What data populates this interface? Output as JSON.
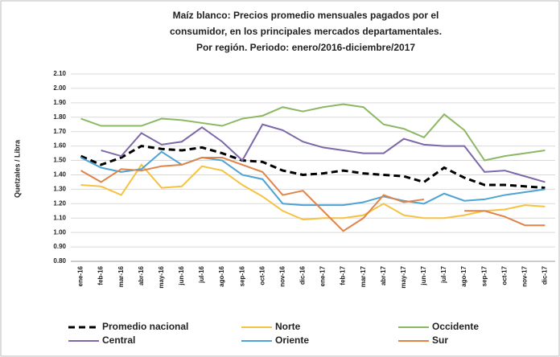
{
  "chart_data": {
    "type": "line",
    "title": [
      "Maíz blanco: Precios promedio mensuales pagados por el",
      "consumidor,  en los principales mercados departamentales.",
      "Por región. Periodo: enero/2016-diciembre/2017"
    ],
    "y_label": "Quetzales / Libra",
    "categories": [
      "ene-16",
      "feb-16",
      "mar-16",
      "abr-16",
      "may-16",
      "jun-16",
      "jul-16",
      "ago-16",
      "sep-16",
      "oct-16",
      "nov-16",
      "dic-16",
      "ene-17",
      "feb-17",
      "mar-17",
      "abr-17",
      "may-17",
      "jun-17",
      "jul-17",
      "ago-17",
      "sep-17",
      "oct-17",
      "nov-17",
      "dic-17"
    ],
    "ylim": [
      0.8,
      2.1
    ],
    "yticks": [
      {
        "value": 0.8,
        "label": "0.80"
      },
      {
        "value": 0.9,
        "label": "0.90"
      },
      {
        "value": 1.0,
        "label": "1.00"
      },
      {
        "value": 1.1,
        "label": "1.10"
      },
      {
        "value": 1.2,
        "label": "1.20"
      },
      {
        "value": 1.3,
        "label": "1.30"
      },
      {
        "value": 1.4,
        "label": "1.40"
      },
      {
        "value": 1.5,
        "label": "1.50"
      },
      {
        "value": 1.6,
        "label": "1.60"
      },
      {
        "value": 1.7,
        "label": "1.70"
      },
      {
        "value": 1.8,
        "label": "1.80"
      },
      {
        "value": 1.9,
        "label": "1.90"
      },
      {
        "value": 2.0,
        "label": "2.00"
      },
      {
        "value": 2.1,
        "label": "2.10"
      }
    ],
    "grid": true,
    "series": [
      {
        "name": "Promedio nacional",
        "color": "#000000",
        "dashed": true,
        "values": [
          1.53,
          1.47,
          1.52,
          1.6,
          1.58,
          1.57,
          1.59,
          1.55,
          1.5,
          1.49,
          1.43,
          1.4,
          1.41,
          1.43,
          1.41,
          1.4,
          1.39,
          1.35,
          1.45,
          1.38,
          1.33,
          1.33,
          1.32,
          1.31
        ]
      },
      {
        "name": "Norte",
        "color": "#f5c242",
        "values": [
          1.33,
          1.32,
          1.26,
          1.47,
          1.31,
          1.32,
          1.46,
          1.43,
          1.33,
          1.25,
          1.15,
          1.09,
          1.1,
          1.1,
          1.12,
          1.2,
          1.12,
          1.1,
          1.1,
          1.12,
          1.15,
          1.16,
          1.19,
          1.18
        ]
      },
      {
        "name": "Occidente",
        "color": "#8db863",
        "values": [
          1.79,
          1.74,
          1.74,
          1.74,
          1.79,
          1.78,
          1.76,
          1.74,
          1.79,
          1.81,
          1.87,
          1.84,
          1.87,
          1.89,
          1.87,
          1.75,
          1.72,
          1.66,
          1.82,
          1.71,
          1.5,
          1.53,
          1.55,
          1.57
        ]
      },
      {
        "name": "Central",
        "color": "#7d68a8",
        "values": [
          null,
          1.57,
          1.53,
          1.69,
          1.61,
          1.63,
          1.73,
          1.63,
          1.5,
          1.75,
          1.71,
          1.63,
          1.59,
          1.57,
          1.55,
          1.55,
          1.65,
          1.61,
          1.6,
          1.6,
          1.42,
          1.43,
          1.39,
          1.35
        ]
      },
      {
        "name": "Oriente",
        "color": "#4ea3d4",
        "values": [
          1.52,
          1.45,
          1.42,
          1.44,
          1.56,
          1.47,
          1.52,
          1.5,
          1.4,
          1.37,
          1.2,
          1.19,
          1.19,
          1.19,
          1.21,
          1.25,
          1.22,
          1.2,
          1.27,
          1.22,
          1.23,
          1.26,
          1.28,
          1.3
        ]
      },
      {
        "name": "Sur",
        "color": "#e0844a",
        "values": [
          1.43,
          1.35,
          1.44,
          1.43,
          1.46,
          1.47,
          1.52,
          1.52,
          1.47,
          1.42,
          1.26,
          1.29,
          1.15,
          1.01,
          1.1,
          1.26,
          1.21,
          1.23,
          null,
          1.15,
          1.15,
          1.11,
          1.05,
          1.05
        ]
      }
    ]
  }
}
